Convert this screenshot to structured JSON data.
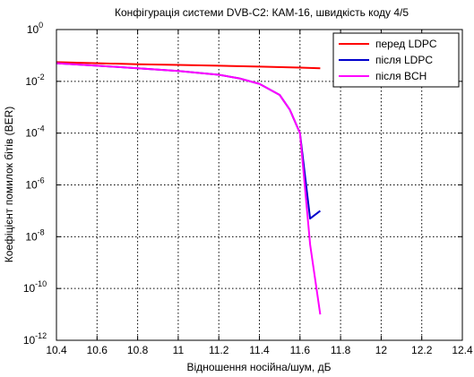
{
  "chart_data": {
    "type": "line",
    "title": "Конфігурація системи DVB-C2: КАМ-16, швидкість коду 4/5",
    "xlabel": "Відношення носійна/шум, дБ",
    "ylabel": "Коефіцієнт помилок бітів (BER)",
    "xlim": [
      10.4,
      12.4
    ],
    "ylim": [
      1e-12,
      1
    ],
    "yscale": "log",
    "grid": true,
    "legend_position": "top-right",
    "x_ticks": [
      "10.4",
      "10.6",
      "10.8",
      "11",
      "11.2",
      "11.4",
      "11.6",
      "11.8",
      "12",
      "12.2",
      "12.4"
    ],
    "y_ticks": [
      {
        "base": "10",
        "exp": "0"
      },
      {
        "base": "10",
        "exp": "-2"
      },
      {
        "base": "10",
        "exp": "-4"
      },
      {
        "base": "10",
        "exp": "-6"
      },
      {
        "base": "10",
        "exp": "-8"
      },
      {
        "base": "10",
        "exp": "-10"
      },
      {
        "base": "10",
        "exp": "-12"
      }
    ],
    "series": [
      {
        "name": "перед LDPC",
        "color": "#ff0000",
        "x": [
          10.4,
          10.6,
          10.8,
          11.0,
          11.2,
          11.4,
          11.6,
          11.7
        ],
        "y": [
          0.055,
          0.05,
          0.046,
          0.043,
          0.04,
          0.037,
          0.034,
          0.032
        ]
      },
      {
        "name": "після LDPC",
        "color": "#0000cc",
        "x": [
          10.4,
          10.6,
          10.8,
          11.0,
          11.2,
          11.3,
          11.4,
          11.5,
          11.55,
          11.6,
          11.65,
          11.7
        ],
        "y": [
          0.05,
          0.04,
          0.032,
          0.025,
          0.018,
          0.013,
          0.008,
          0.003,
          0.0008,
          0.0001,
          5e-08,
          1e-07
        ]
      },
      {
        "name": "після BCH",
        "color": "#ff00ff",
        "x": [
          10.4,
          10.6,
          10.8,
          11.0,
          11.2,
          11.3,
          11.4,
          11.5,
          11.55,
          11.6,
          11.65,
          11.7
        ],
        "y": [
          0.05,
          0.04,
          0.032,
          0.025,
          0.018,
          0.013,
          0.008,
          0.003,
          0.0008,
          0.0001,
          5e-09,
          1e-11
        ]
      }
    ]
  }
}
